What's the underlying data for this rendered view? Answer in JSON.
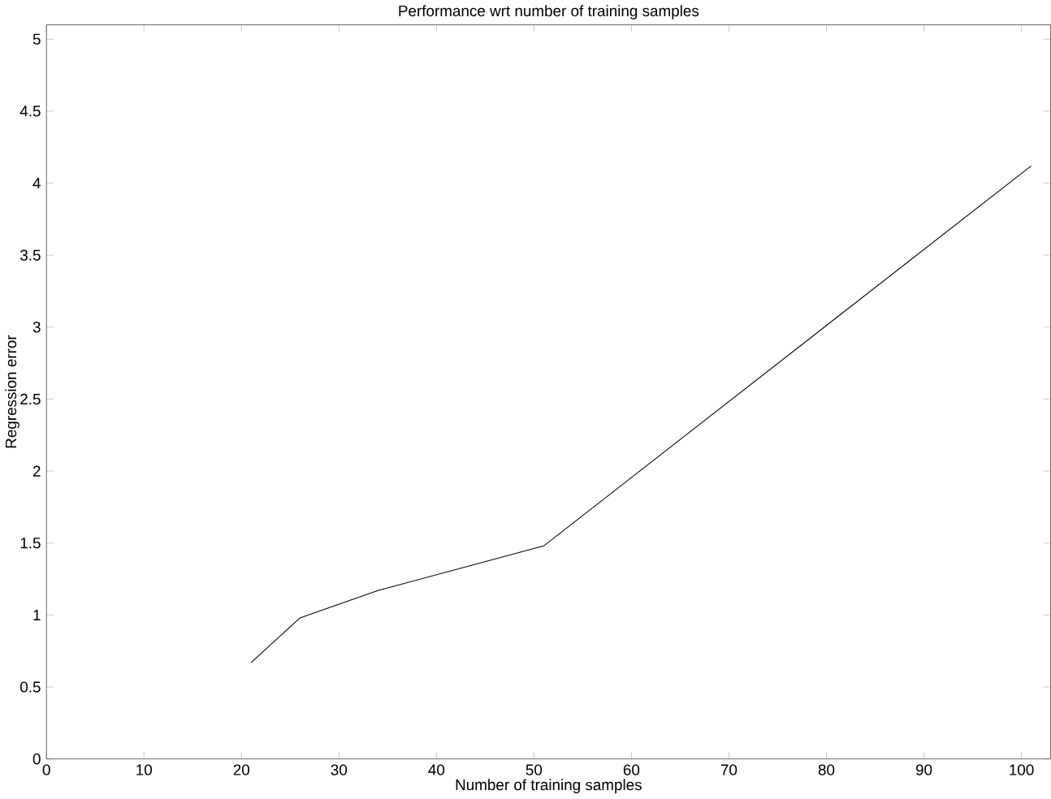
{
  "chart_data": {
    "type": "line",
    "title": "Performance wrt number of training samples",
    "xlabel": "Number of training samples",
    "ylabel": "Regression error",
    "x": [
      21,
      26,
      34,
      51,
      101
    ],
    "series": [
      {
        "color": "#000000",
        "values": [
          0.67,
          0.98,
          1.17,
          1.48,
          4.12
        ]
      }
    ],
    "xlim": [
      0,
      103
    ],
    "ylim": [
      0,
      5.1
    ],
    "xticks": [
      0,
      10,
      20,
      30,
      40,
      50,
      60,
      70,
      80,
      90,
      100
    ],
    "yticks": [
      0,
      0.5,
      1,
      1.5,
      2,
      2.5,
      3,
      3.5,
      4,
      4.5,
      5
    ],
    "marker": "none",
    "line_style": "solid"
  }
}
